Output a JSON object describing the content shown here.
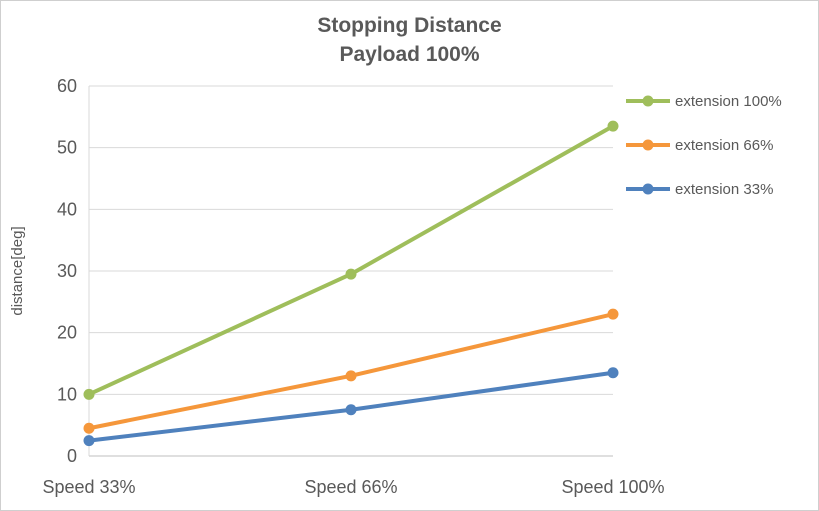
{
  "chart_data": {
    "type": "line",
    "title": "Stopping Distance",
    "subtitle": "Payload 100%",
    "xlabel": "",
    "ylabel": "distance[deg]",
    "ylim": [
      0,
      60
    ],
    "yticks": [
      0,
      10,
      20,
      30,
      40,
      50,
      60
    ],
    "grid": true,
    "legend_position": "right",
    "categories": [
      "Speed 33%",
      "Speed 66%",
      "Speed 100%"
    ],
    "series": [
      {
        "name": "extension 100%",
        "color": "#9FBE5B",
        "values": [
          10,
          29.5,
          53.5
        ]
      },
      {
        "name": "extension 66%",
        "color": "#F5973B",
        "values": [
          4.5,
          13,
          23
        ]
      },
      {
        "name": "extension 33%",
        "color": "#4F81BD",
        "values": [
          2.5,
          7.5,
          13.5
        ]
      }
    ],
    "colors": {
      "text": "#595959",
      "gridline": "#D9D9D9",
      "axis": "#BFBFBF",
      "background": "#FFFFFF"
    }
  }
}
